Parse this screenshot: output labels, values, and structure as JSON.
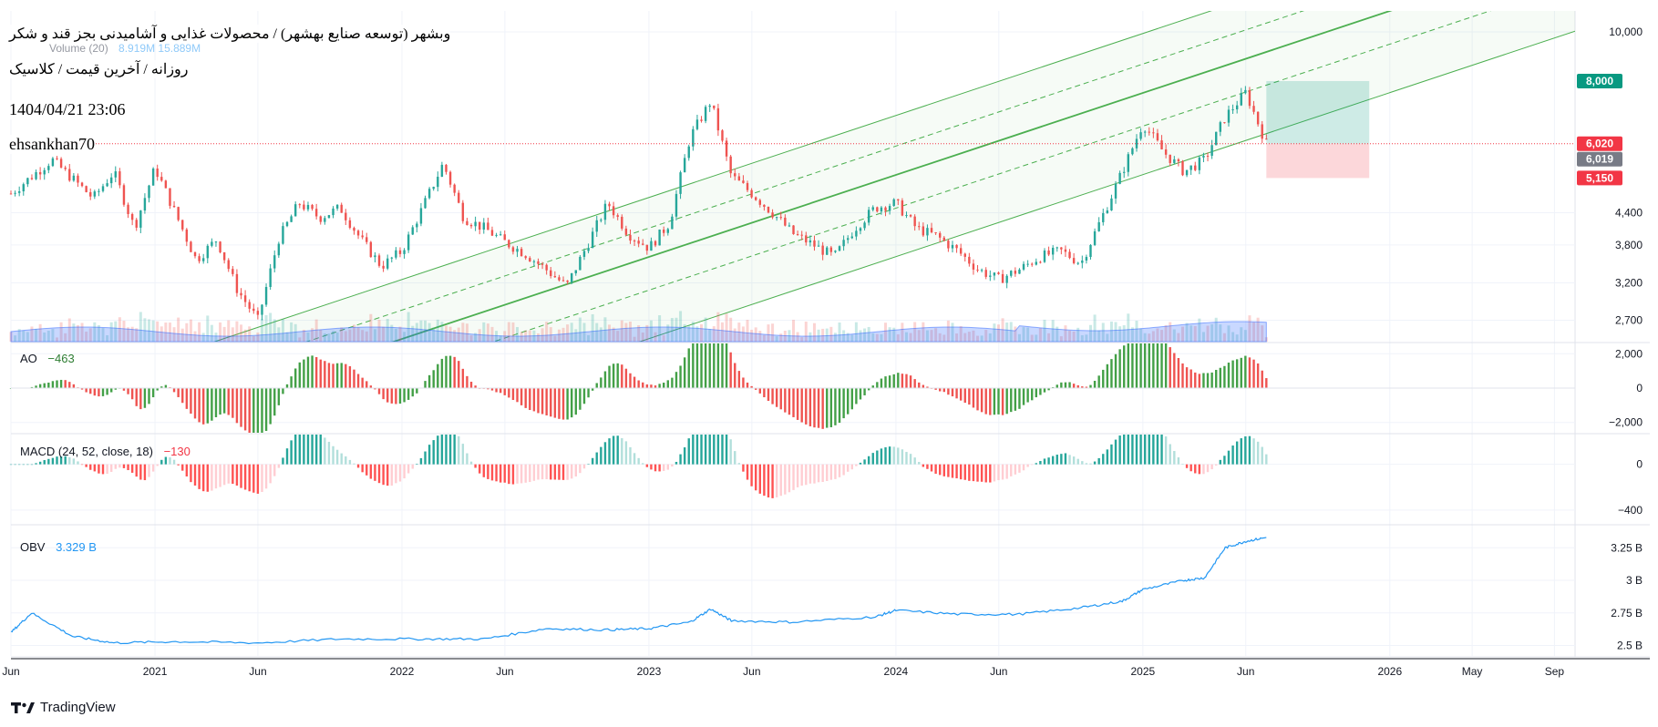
{
  "header": {
    "title": "وبشهر (توسعه صنایع بهشهر) / محصولات غذایی و آشامیدنی بجز قند و شکر",
    "interval": "روزانه / آخرین قیمت / کلاسیک",
    "datetime": "1404/04/21 23:06",
    "author": "ehsankhan70",
    "volume_label": "Volume (20)",
    "volume_values": "8.919M  15.889M"
  },
  "footer": {
    "brand": "TradingView"
  },
  "colors": {
    "up": "#26a69a",
    "down": "#ef5350",
    "channel": "#4caf50",
    "volume": "#2962ff",
    "obv": "#2196f3",
    "target": "#089981",
    "stop": "#f23645",
    "last": "#787b86",
    "ao_up": "#43a047",
    "ao_down": "#ef5350"
  },
  "chart_data": [
    {
      "type": "candlestick",
      "pane": "price",
      "scale": "log",
      "ylim": [
        2450,
        11000
      ],
      "y_ticks": [
        "10,000",
        "4,400",
        "3,800",
        "3,200",
        "2,700"
      ],
      "x_ticks": [
        "Jun",
        "2021",
        "Jun",
        "2022",
        "Jun",
        "2023",
        "Jun",
        "2024",
        "Jun",
        "2025",
        "Jun",
        "2026",
        "May",
        "Sep"
      ],
      "x_tick_dates": [
        "2020-06",
        "2021-01",
        "2021-06",
        "2022-01",
        "2022-06",
        "2023-01",
        "2023-06",
        "2024-01",
        "2024-06",
        "2025-01",
        "2025-06",
        "2026-01",
        "2026-05",
        "2026-09"
      ],
      "x_range": [
        "2020-06",
        "2026-10"
      ],
      "close_series": {
        "dates": [
          "2020-06",
          "2020-08",
          "2020-10",
          "2020-11",
          "2020-12",
          "2021-01",
          "2021-03",
          "2021-04",
          "2021-05",
          "2021-06",
          "2021-07",
          "2021-08",
          "2021-09",
          "2021-10",
          "2021-11",
          "2021-12",
          "2022-01",
          "2022-02",
          "2022-03",
          "2022-04",
          "2022-05",
          "2022-06",
          "2022-07",
          "2022-08",
          "2022-09",
          "2022-10",
          "2022-11",
          "2022-12",
          "2023-01",
          "2023-02",
          "2023-03",
          "2023-04",
          "2023-05",
          "2023-06",
          "2023-07",
          "2023-08",
          "2023-09",
          "2023-10",
          "2023-11",
          "2023-12",
          "2024-01",
          "2024-02",
          "2024-03",
          "2024-04",
          "2024-05",
          "2024-06",
          "2024-07",
          "2024-08",
          "2024-09",
          "2024-10",
          "2024-11",
          "2024-12",
          "2025-01",
          "2025-02",
          "2025-03",
          "2025-04",
          "2025-05",
          "2025-06",
          "2025-07"
        ],
        "close": [
          4800,
          5600,
          4700,
          5300,
          4100,
          5400,
          3550,
          3900,
          3100,
          2700,
          3900,
          4600,
          4300,
          4500,
          3900,
          3450,
          3700,
          4500,
          5500,
          4300,
          4100,
          3850,
          3650,
          3400,
          3150,
          3800,
          4600,
          4000,
          3750,
          4200,
          6200,
          7300,
          5200,
          4800,
          4400,
          4000,
          3800,
          3600,
          4100,
          4500,
          4600,
          4100,
          3950,
          3700,
          3400,
          3250,
          3400,
          3600,
          3700,
          3500,
          4300,
          5300,
          6600,
          5800,
          5300,
          5600,
          6800,
          7600,
          6020
        ]
      },
      "channel": {
        "mid_line": [
          [
            "2022-01",
            2480
          ],
          [
            "2026-01",
            11000
          ]
        ],
        "upper_offset_pct": 31,
        "lower_offset_pct": -31,
        "dashed_offsets_pct": [
          -14,
          14
        ]
      },
      "position_tool": {
        "target": 8000,
        "entry": 6020,
        "stop": 5150,
        "start": "2025-07",
        "end": "2025-12"
      },
      "price_labels": [
        {
          "value": 8000,
          "text": "8,000",
          "kind": "target"
        },
        {
          "value": 6020,
          "text": "6,020",
          "kind": "stop"
        },
        {
          "value": 6019,
          "text": "6,019",
          "kind": "last"
        },
        {
          "value": 5150,
          "text": "5,150",
          "kind": "stop"
        }
      ],
      "last_price": 6020
    },
    {
      "type": "histogram",
      "pane": "ao",
      "name": "AO",
      "last_value": "−463",
      "y_ticks": [
        2000,
        0,
        -2000
      ],
      "y_tick_labels": [
        "2,000",
        "0",
        "−2,000"
      ],
      "ylim": [
        -2600,
        2600
      ]
    },
    {
      "type": "histogram",
      "pane": "macd",
      "name": "MACD (24, 52, close, 18)",
      "last_value": "−130",
      "y_ticks": [
        0,
        -400
      ],
      "y_tick_labels": [
        "0",
        "−400"
      ],
      "ylim": [
        -520,
        260
      ]
    },
    {
      "type": "line",
      "pane": "obv",
      "name": "OBV",
      "last_value": "3.329 B",
      "y_ticks": [
        3.25,
        3.0,
        2.75,
        2.5
      ],
      "y_tick_labels": [
        "3.25 B",
        "3 B",
        "2.75 B",
        "2.5 B"
      ],
      "ylim": [
        2.42,
        3.42
      ],
      "dates": [
        "2020-06",
        "2020-07",
        "2020-09",
        "2020-11",
        "2021-02",
        "2021-06",
        "2021-10",
        "2022-02",
        "2022-05",
        "2022-08",
        "2022-11",
        "2023-01",
        "2023-03",
        "2023-04",
        "2023-05",
        "2023-08",
        "2023-12",
        "2024-01",
        "2024-04",
        "2024-07",
        "2024-10",
        "2024-12",
        "2025-01",
        "2025-03",
        "2025-04",
        "2025-05",
        "2025-06",
        "2025-07"
      ],
      "values": [
        2.6,
        2.75,
        2.57,
        2.52,
        2.53,
        2.52,
        2.55,
        2.55,
        2.55,
        2.63,
        2.62,
        2.63,
        2.68,
        2.78,
        2.69,
        2.68,
        2.72,
        2.77,
        2.74,
        2.74,
        2.79,
        2.84,
        2.93,
        3.0,
        3.02,
        3.25,
        3.3,
        3.329
      ]
    }
  ]
}
